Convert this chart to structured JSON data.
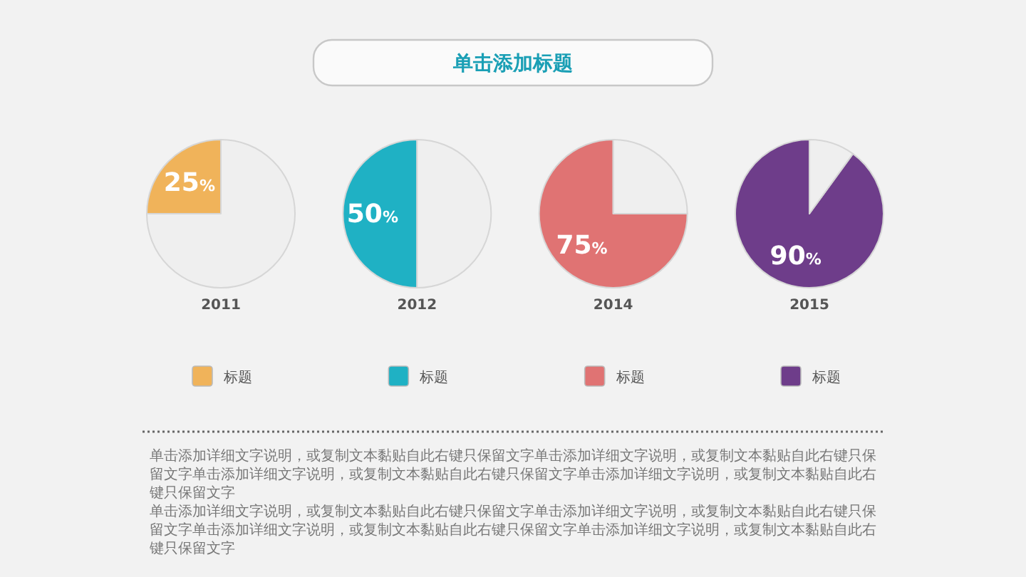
{
  "chart_data": [
    {
      "type": "other",
      "title": "单击添加标题",
      "annotations": [
        "单击添加详细文字说明，或复制文本黏贴自此右键只保留文字单击添加详细文字说明，或复制文本黏贴自此右键只保留文字单击添加详细文字说明，或复制文本黏贴自此右键只保留文字单击添加详细文字说明，或复制文本黏贴自此右键只保留文字",
        "单击添加详细文字说明，或复制文本黏贴自此右键只保留文字单击添加详细文字说明，或复制文本黏贴自此右键只保留文字单击添加详细文字说明，或复制文本黏贴自此右键只保留文字单击添加详细文字说明，或复制文本黏贴自此右键只保留文字"
      ]
    },
    {
      "type": "pie",
      "xlabel": "2011",
      "categories": [
        "标题",
        null
      ],
      "values": [
        25,
        75
      ],
      "colors": [
        "#f0b35a",
        "#efefef"
      ],
      "value_labels": [
        "25%",
        null
      ],
      "legend": "bottom"
    },
    {
      "type": "pie",
      "xlabel": "2012",
      "categories": [
        "标题",
        null
      ],
      "values": [
        50,
        50
      ],
      "colors": [
        "#1fb1c4",
        "#efefef"
      ],
      "value_labels": [
        "50%",
        null
      ],
      "legend": "bottom"
    },
    {
      "type": "pie",
      "xlabel": "2014",
      "categories": [
        "标题",
        null
      ],
      "values": [
        75,
        25
      ],
      "colors": [
        "#e07373",
        "#efefef"
      ],
      "value_labels": [
        "75%",
        null
      ],
      "legend": "bottom"
    },
    {
      "type": "pie",
      "xlabel": "2015",
      "categories": [
        "标题",
        null
      ],
      "values": [
        90,
        10
      ],
      "colors": [
        "#6e3d8a",
        "#efefef"
      ],
      "value_labels": [
        "90%",
        null
      ],
      "legend": "bottom"
    }
  ]
}
